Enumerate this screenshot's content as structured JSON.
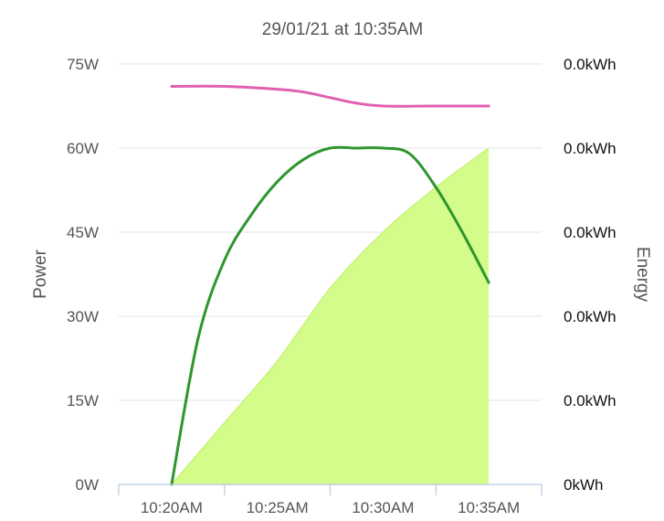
{
  "chart_data": {
    "type": "line",
    "title": "29/01/21 at 10:35AM",
    "ylabel": "Power",
    "y2label": "Energy",
    "categories": [
      "10:20AM",
      "10:25AM",
      "10:30AM",
      "10:35AM"
    ],
    "ylim": [
      0,
      75
    ],
    "yticks": [
      0,
      15,
      30,
      45,
      60,
      75
    ],
    "ytick_labels": [
      "0W",
      "15W",
      "30W",
      "45W",
      "60W",
      "75W"
    ],
    "y2tick_labels": [
      "0kWh",
      "0.0kWh",
      "0.0kWh",
      "0.0kWh",
      "0.0kWh",
      "0.0kWh"
    ],
    "grid": true,
    "legend": "none",
    "series": [
      {
        "type": "area",
        "color": "#d4fc8a",
        "stroke": "#c9f27a",
        "x": [
          0,
          0.5,
          1.0,
          1.5,
          2.0,
          2.5,
          3.0
        ],
        "values": [
          0,
          11,
          22,
          35,
          45,
          53,
          60
        ]
      },
      {
        "type": "line",
        "color": "#2e962e",
        "x": [
          0,
          0.25,
          0.5,
          0.75,
          1.0,
          1.25,
          1.5,
          1.75,
          2.0,
          2.25,
          2.5,
          2.75,
          3.0
        ],
        "values": [
          0,
          26,
          40,
          48,
          54,
          58,
          60,
          60,
          60,
          59,
          53,
          45,
          36
        ]
      },
      {
        "type": "line",
        "color": "#e060b0",
        "x": [
          0,
          0.5,
          1.0,
          1.25,
          1.5,
          1.75,
          2.0,
          2.5,
          3.0
        ],
        "values": [
          71,
          71,
          70.5,
          70,
          69,
          68,
          67.5,
          67.5,
          67.5
        ]
      }
    ]
  }
}
